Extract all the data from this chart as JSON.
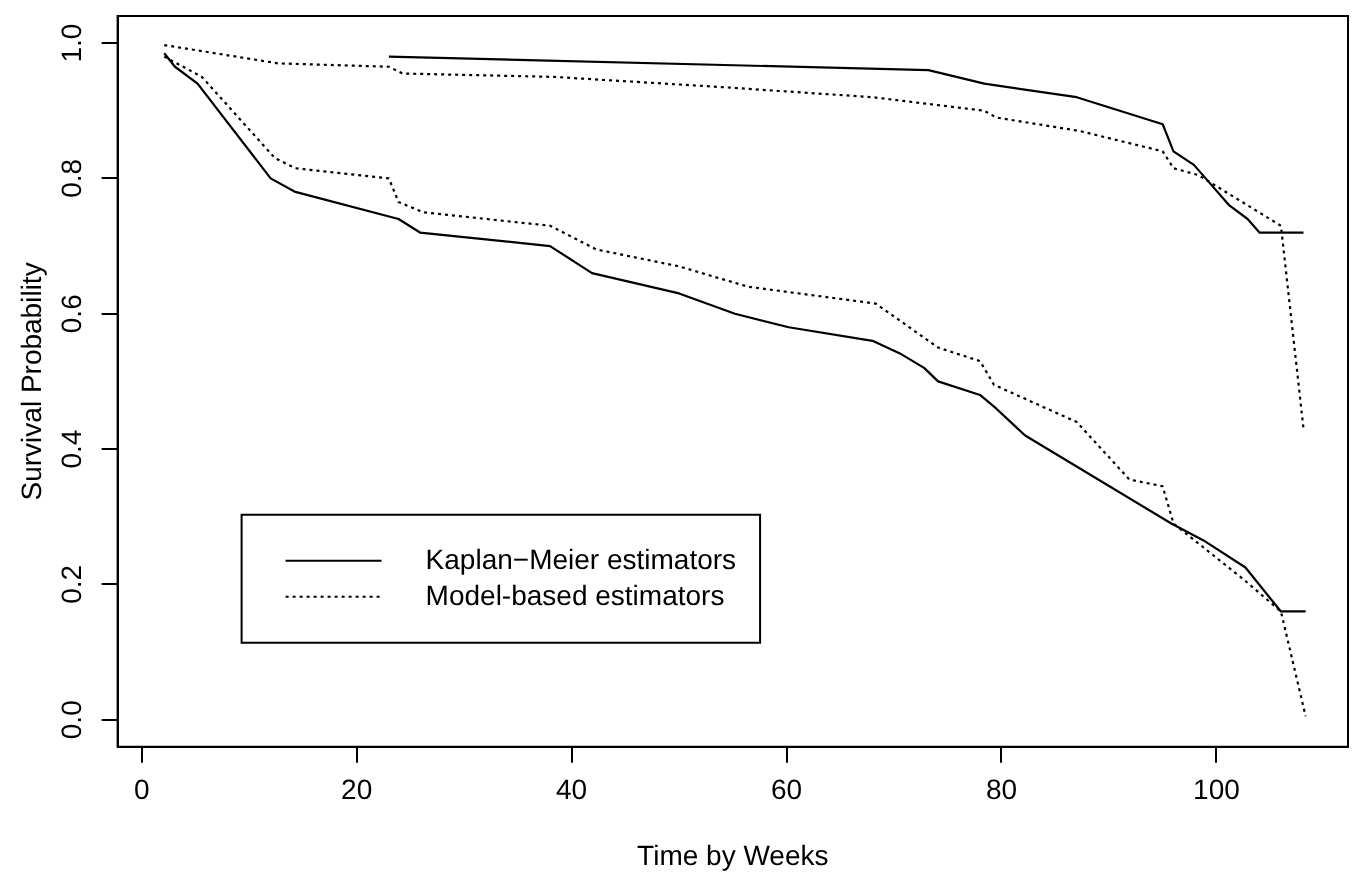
{
  "chart_data": {
    "type": "line",
    "xlabel": "Time by Weeks",
    "ylabel": "Survival Probability",
    "xlim": [
      -2.24,
      112.24
    ],
    "ylim": [
      -0.04,
      1.04
    ],
    "xticks": [
      0,
      20,
      40,
      60,
      80,
      100
    ],
    "yticks": [
      {
        "value": 0,
        "label": "0.0"
      },
      {
        "value": 0.2,
        "label": "0.2"
      },
      {
        "value": 0.4,
        "label": "0.4"
      },
      {
        "value": 0.6,
        "label": "0.6"
      },
      {
        "value": 0.8,
        "label": "0.8"
      },
      {
        "value": 1,
        "label": "1.0"
      }
    ],
    "grid": false,
    "legend": "bottom left",
    "marker": "none",
    "series": [
      {
        "name": "Kaplan−Meier estimators",
        "color": "#000000",
        "line_style": "solid",
        "x": [
          23,
          73.2,
          78.4,
          87,
          95,
          96,
          97.9,
          101.2,
          102.9,
          104,
          108.1
        ],
        "values": [
          0.98,
          0.96,
          0.94,
          0.92,
          0.88,
          0.84,
          0.82,
          0.76,
          0.74,
          0.72,
          0.72
        ]
      },
      {
        "name": "Model-based estimators",
        "color": "#000000",
        "line_style": "dotted",
        "x": [
          2.1,
          12.7,
          23,
          24.3,
          38.4,
          53.9,
          68,
          78.4,
          79.5,
          87.3,
          95,
          96,
          98.3,
          106,
          108.1
        ],
        "values": [
          0.997,
          0.97,
          0.965,
          0.955,
          0.95,
          0.935,
          0.92,
          0.9,
          0.89,
          0.87,
          0.84,
          0.815,
          0.805,
          0.73,
          0.43
        ]
      },
      {
        "color": "#000000",
        "line_style": "solid",
        "x": [
          2.1,
          3.1,
          5.2,
          12,
          14.3,
          23.9,
          25.9,
          38,
          41.9,
          50,
          55.2,
          60.2,
          68,
          70.7,
          72.8,
          74.1,
          78,
          79.5,
          82.2,
          95.8,
          98.8,
          102.7,
          106,
          108.3
        ],
        "values": [
          0.985,
          0.965,
          0.94,
          0.8,
          0.78,
          0.74,
          0.72,
          0.7,
          0.66,
          0.63,
          0.6,
          0.58,
          0.56,
          0.54,
          0.52,
          0.5,
          0.48,
          0.46,
          0.42,
          0.29,
          0.265,
          0.225,
          0.16,
          0.16
        ]
      },
      {
        "color": "#000000",
        "line_style": "dotted",
        "x": [
          2.1,
          5.6,
          12.4,
          14.3,
          23,
          23.9,
          26.2,
          38,
          42.3,
          50,
          56.4,
          68.3,
          74.1,
          78,
          79.3,
          87,
          91.9,
          95,
          96,
          102.7,
          106,
          108.3
        ],
        "values": [
          0.98,
          0.95,
          0.83,
          0.815,
          0.8,
          0.765,
          0.75,
          0.73,
          0.695,
          0.67,
          0.64,
          0.615,
          0.55,
          0.53,
          0.495,
          0.44,
          0.355,
          0.345,
          0.29,
          0.205,
          0.16,
          0.005
        ]
      }
    ]
  }
}
